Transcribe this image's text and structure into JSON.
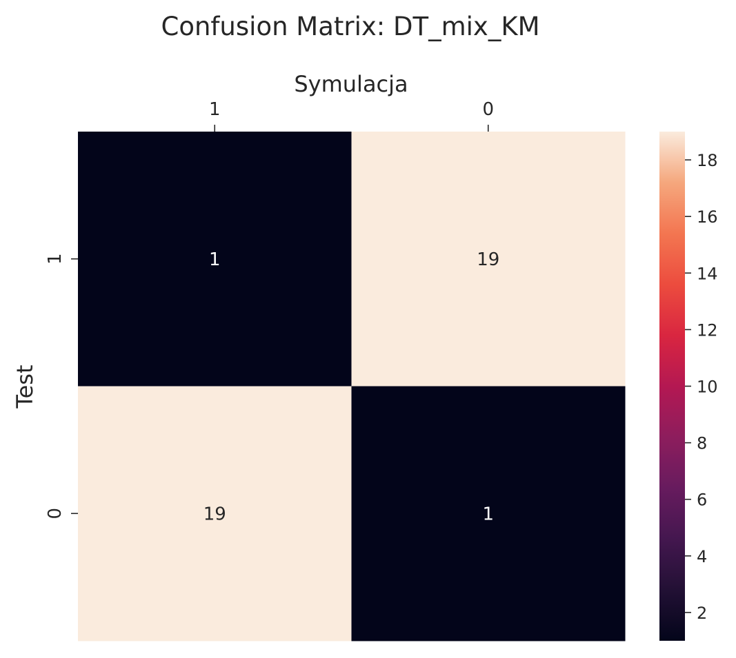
{
  "chart_data": {
    "type": "heatmap",
    "title": "Confusion Matrix: DT_mix_KM",
    "xlabel": "Symulacja",
    "ylabel": "Test",
    "x_categories": [
      "1",
      "0"
    ],
    "y_categories": [
      "1",
      "0"
    ],
    "values": [
      [
        1,
        19
      ],
      [
        19,
        1
      ]
    ],
    "colormap": "rocket",
    "value_range": [
      1,
      19
    ],
    "colorbar_ticks": [
      2,
      4,
      6,
      8,
      10,
      12,
      14,
      16,
      18
    ],
    "x_axis_position": "top",
    "grid": false
  }
}
